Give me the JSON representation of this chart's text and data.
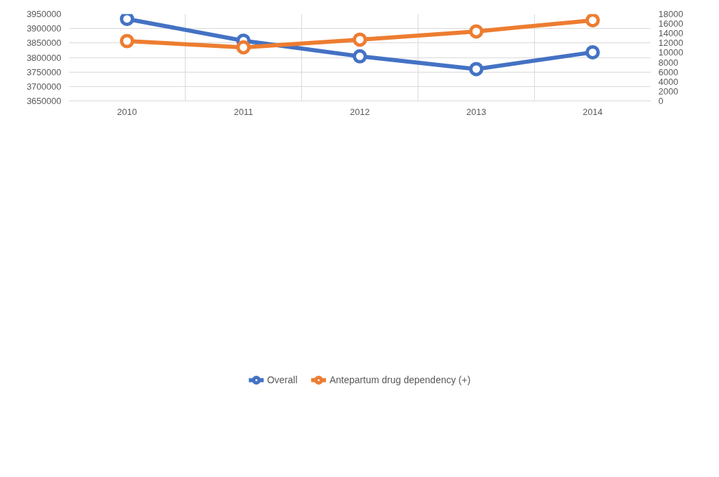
{
  "chart_data": {
    "type": "line",
    "categories": [
      "2010",
      "2011",
      "2012",
      "2013",
      "2014"
    ],
    "series": [
      {
        "name": "Overall",
        "color": "#4472c4",
        "values": [
          3933000,
          3858000,
          3804000,
          3760000,
          3818000
        ]
      },
      {
        "name": "Antepartum drug dependency (+)",
        "color": "#ed7d31",
        "axis": "y2",
        "values": [
          12400,
          11100,
          12700,
          14400,
          16700
        ]
      }
    ],
    "ylim": [
      3650000,
      3950000
    ],
    "yticks": [
      3650000,
      3700000,
      3750000,
      3800000,
      3850000,
      3900000,
      3950000
    ],
    "y2lim": [
      0,
      18000
    ],
    "y2ticks": [
      0,
      2000,
      4000,
      6000,
      8000,
      10000,
      12000,
      14000,
      16000,
      18000
    ],
    "grid": true,
    "legend": "bottom",
    "marker": "circle",
    "line_style": "solid"
  }
}
